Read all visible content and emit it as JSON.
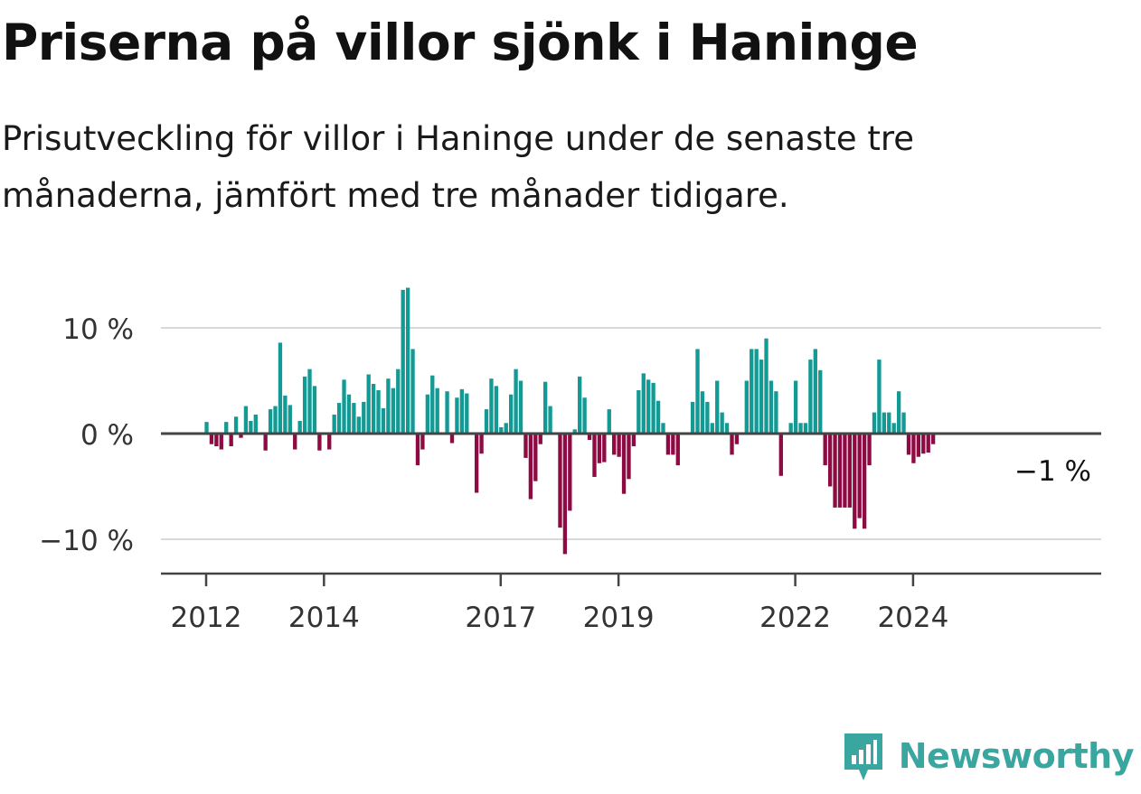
{
  "header": {
    "title": "Priserna på villor sjönk i Haninge",
    "subtitle": "Prisutveckling för villor i Haninge under de senaste tre månaderna, jämfört med tre månader tidigare."
  },
  "brand": {
    "name": "Newsworthy",
    "icon": "newsworthy-logo-icon",
    "color": "#3aa6a0"
  },
  "chart_data": {
    "type": "bar",
    "xlabel": "",
    "ylabel": "",
    "ylim": [
      -13,
      14
    ],
    "grid": true,
    "legend": "none",
    "colors": {
      "positive": "#139a94",
      "negative": "#8e0a43",
      "grid": "#d9d9d9",
      "axis": "#444444"
    },
    "ticks_y": [
      {
        "value": 10,
        "label": "10 %"
      },
      {
        "value": 0,
        "label": "0 %"
      },
      {
        "value": -10,
        "label": "−10 %"
      }
    ],
    "ticks_x": [
      {
        "value": 2012,
        "label": "2012"
      },
      {
        "value": 2014,
        "label": "2014"
      },
      {
        "value": 2017,
        "label": "2017"
      },
      {
        "value": 2019,
        "label": "2019"
      },
      {
        "value": 2022,
        "label": "2022"
      },
      {
        "value": 2024,
        "label": "2024"
      }
    ],
    "x_start": "2012-01",
    "values": [
      1.1,
      -1,
      -1.2,
      -1.5,
      1.1,
      -1.2,
      1.6,
      -0.4,
      2.6,
      1.2,
      1.8,
      0,
      -1.6,
      2.3,
      2.6,
      8.6,
      3.6,
      2.7,
      -1.5,
      1.2,
      5.4,
      6.1,
      4.5,
      -1.6,
      0,
      -1.5,
      1.8,
      2.9,
      5.1,
      3.7,
      2.9,
      1.6,
      3,
      5.6,
      4.7,
      4.1,
      2.4,
      5.2,
      4.3,
      6.1,
      13.6,
      13.8,
      8,
      -3,
      -1.5,
      3.7,
      5.5,
      4.3,
      0,
      4,
      -0.9,
      3.4,
      4.2,
      3.8,
      0,
      -5.6,
      -1.9,
      2.3,
      5.2,
      4.5,
      0.6,
      1,
      3.7,
      6.1,
      5,
      -2.3,
      -6.2,
      -4.5,
      -1,
      4.9,
      2.6,
      0,
      -8.9,
      -11.4,
      -7.3,
      0.4,
      5.4,
      3.4,
      -0.6,
      -4.1,
      -2.8,
      -2.7,
      2.3,
      -2,
      -2.2,
      -5.7,
      -4.3,
      -1.2,
      4.1,
      5.7,
      5.1,
      4.8,
      3.1,
      1,
      -2,
      -2,
      -3,
      0,
      0,
      3,
      8,
      4,
      3,
      1,
      5,
      2,
      1,
      -2,
      -1,
      0,
      5,
      8,
      8,
      7,
      9,
      5,
      4,
      -4,
      0,
      1,
      5,
      1,
      1,
      7,
      8,
      6,
      -3,
      -5,
      -7,
      -7,
      -7,
      -7,
      -9,
      -8,
      -9,
      -3,
      2,
      7,
      2,
      2,
      1,
      4,
      2,
      -2,
      -2.8,
      -2.2,
      -1.9,
      -1.8,
      -1
    ],
    "last_label": "−1 %"
  }
}
